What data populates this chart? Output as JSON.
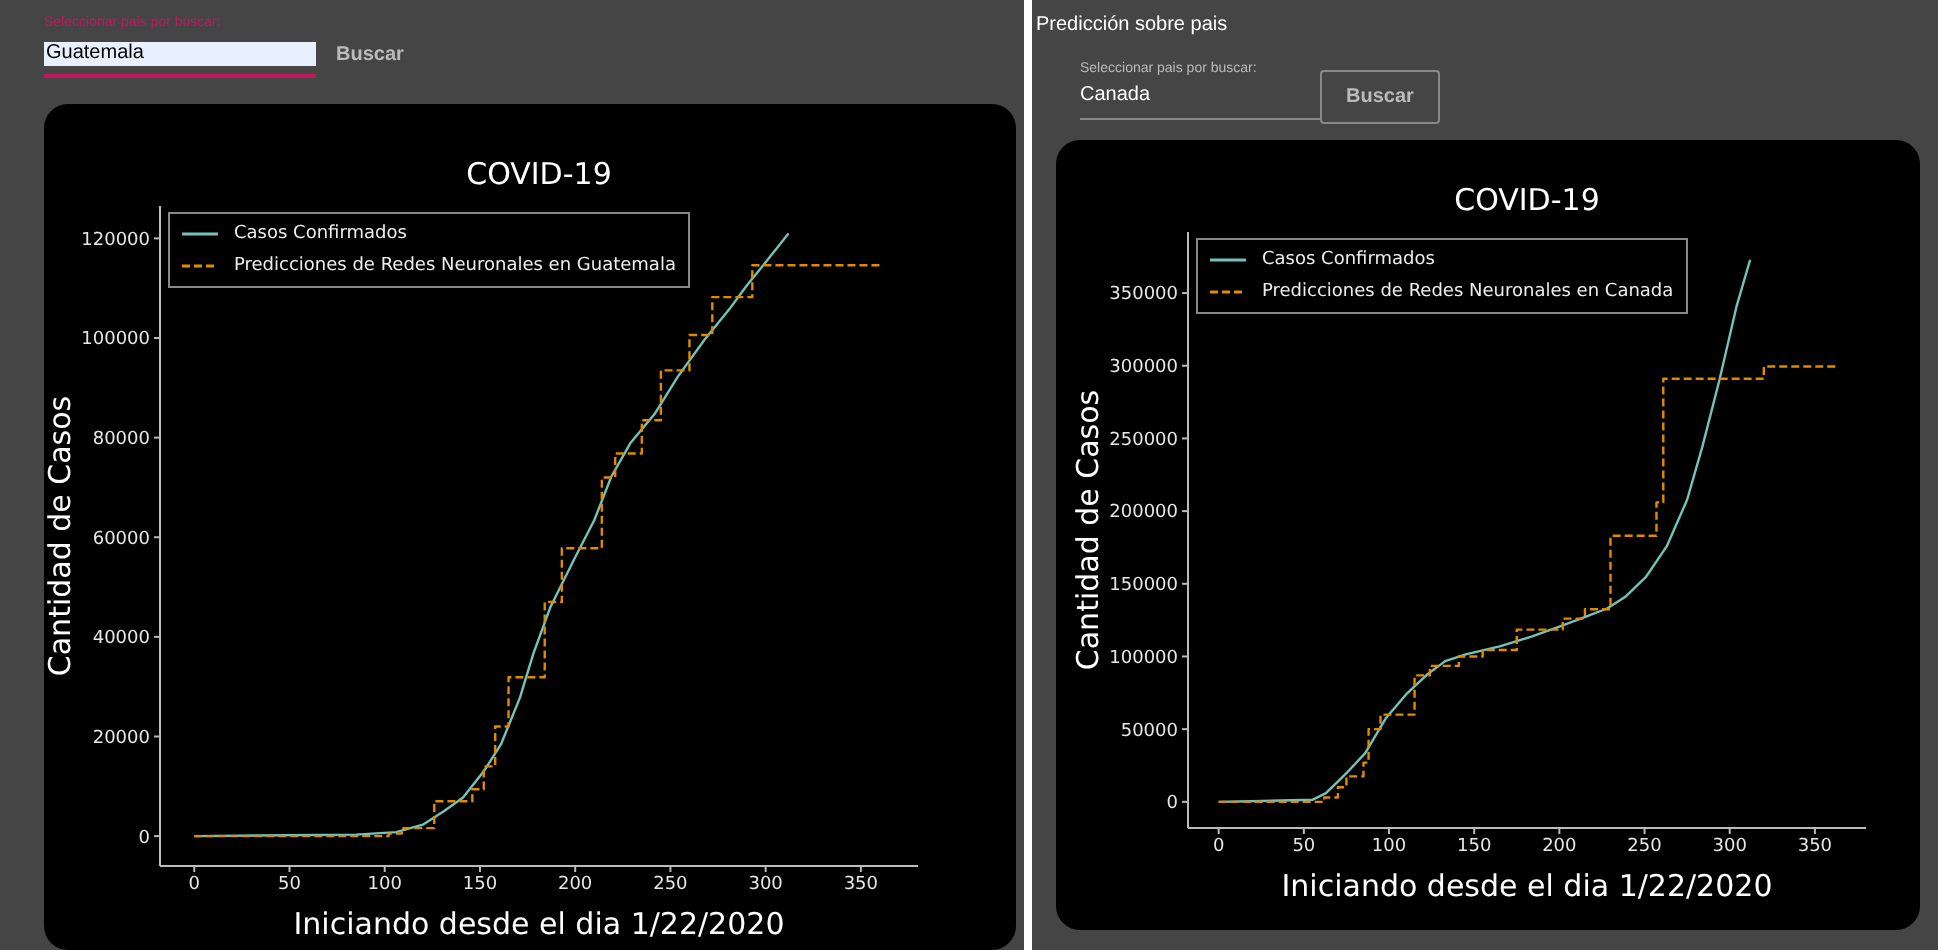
{
  "chart_data": [
    {
      "type": "line",
      "title": "COVID-19",
      "xlabel": "Iniciando desde el dia 1/22/2020",
      "ylabel": "Cantidad de Casos",
      "xlim": [
        -18,
        380
      ],
      "ylim": [
        -6000,
        126500
      ],
      "xticks": [
        0,
        50,
        100,
        150,
        200,
        250,
        300,
        350
      ],
      "yticks": [
        0,
        20000,
        40000,
        60000,
        80000,
        100000,
        120000
      ],
      "legend": "top left",
      "grid": false,
      "annotations": [
        "Seleccionar pais por buscar:",
        "Guatemala",
        "Buscar"
      ],
      "series": [
        {
          "name": "Casos Confirmados",
          "color": "#74c2b8",
          "type": "line",
          "line_style": "solid",
          "x": [
            0,
            85,
            106,
            120,
            131,
            141,
            152,
            161,
            171,
            178,
            187,
            200,
            210,
            219,
            229,
            242,
            254,
            268,
            281,
            290,
            300,
            312
          ],
          "values": [
            0,
            300,
            800,
            2300,
            5000,
            7700,
            13000,
            18400,
            27800,
            36600,
            46000,
            56000,
            63400,
            72200,
            78900,
            84900,
            92300,
            99700,
            105800,
            110500,
            115200,
            121000
          ]
        },
        {
          "name": "Predicciones de Redes Neuronales en Guatemala",
          "color": "#e08a00",
          "type": "step",
          "line_style": "dashed",
          "x": [
            0,
            102,
            109,
            126,
            146,
            152,
            158,
            165,
            184,
            193,
            214,
            221,
            235,
            245,
            260,
            272,
            293,
            360
          ],
          "values": [
            0,
            500,
            1600,
            7000,
            9400,
            14000,
            22000,
            31900,
            47000,
            57800,
            72000,
            76800,
            83500,
            93500,
            100600,
            108200,
            114600,
            114600
          ]
        }
      ]
    },
    {
      "type": "line",
      "title": "COVID-19",
      "xlabel": "Iniciando desde el dia 1/22/2020",
      "ylabel": "Cantidad de Casos",
      "xlim": [
        -18,
        380
      ],
      "ylim": [
        -18000,
        392000
      ],
      "xticks": [
        0,
        50,
        100,
        150,
        200,
        250,
        300,
        350
      ],
      "yticks": [
        0,
        50000,
        100000,
        150000,
        200000,
        250000,
        300000,
        350000
      ],
      "legend": "top left",
      "grid": false,
      "annotations": [
        "Predicción sobre pais",
        "Seleccionar pais por buscar:",
        "Canada",
        "Buscar"
      ],
      "series": [
        {
          "name": "Casos Confirmados",
          "color": "#74c2b8",
          "type": "line",
          "line_style": "solid",
          "x": [
            0,
            55,
            63,
            75,
            86,
            98,
            110,
            122,
            133,
            145,
            165,
            184,
            200,
            216,
            228,
            239,
            251,
            263,
            275,
            284,
            294,
            304,
            312
          ],
          "values": [
            0,
            1400,
            6000,
            19700,
            33500,
            57300,
            73900,
            87200,
            96800,
            101400,
            106900,
            113800,
            120600,
            127500,
            133000,
            141300,
            155000,
            175700,
            207800,
            244500,
            290400,
            340800,
            372900
          ]
        },
        {
          "name": "Predicciones de Redes Neuronales en Canada",
          "color": "#e08a00",
          "type": "step",
          "line_style": "dashed",
          "x": [
            0,
            62,
            70,
            75,
            85,
            88,
            95,
            115,
            124,
            141,
            155,
            175,
            202,
            215,
            230,
            257,
            261,
            320,
            362
          ],
          "values": [
            0,
            3000,
            10000,
            17500,
            27000,
            50000,
            60000,
            87000,
            93500,
            100000,
            104500,
            118500,
            126000,
            132500,
            183000,
            206000,
            291000,
            299500,
            299500
          ]
        }
      ]
    }
  ]
}
